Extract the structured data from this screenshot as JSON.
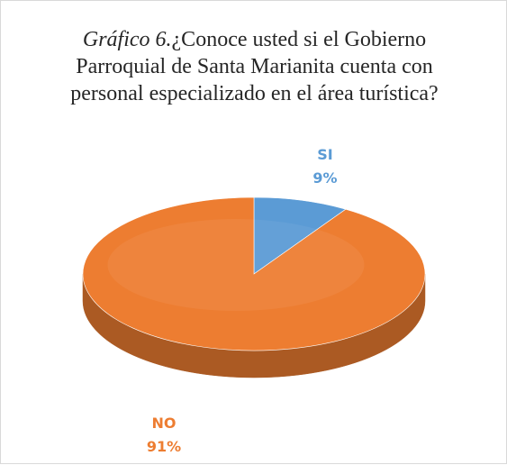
{
  "chart_data": {
    "type": "pie",
    "title_prefix": "Gráfico 6.",
    "title_text": "¿Conoce usted si el Gobierno Parroquial de Santa Marianita cuenta con personal especializado en el área turística?",
    "slices": [
      {
        "label": "SI",
        "value": 9,
        "display": "9%",
        "color": "#5b9bd5"
      },
      {
        "label": "NO",
        "value": 91,
        "display": "91%",
        "color": "#ed7d31"
      }
    ],
    "legend": "none",
    "style": "3d-pie"
  }
}
